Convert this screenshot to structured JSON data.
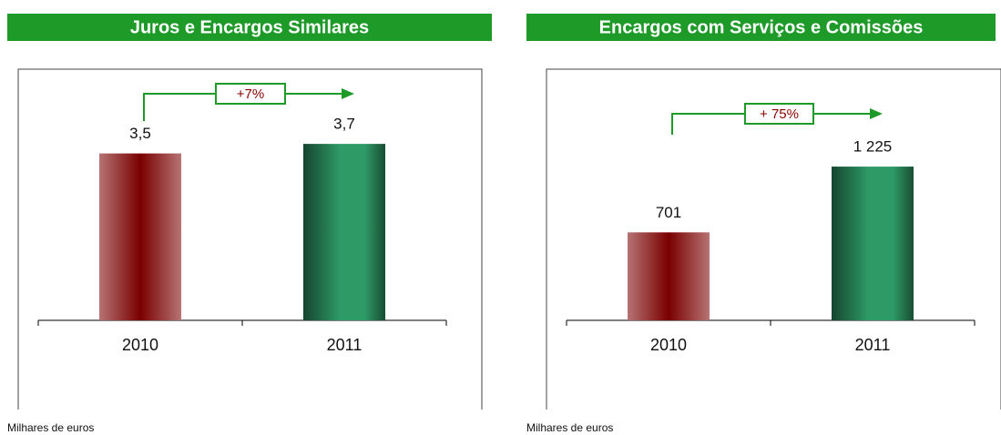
{
  "chart_data": [
    {
      "type": "bar",
      "title": "Juros e Encargos Similares",
      "categories": [
        "2010",
        "2011"
      ],
      "values": [
        3.5,
        3.7
      ],
      "value_labels": [
        "3,5",
        "3,7"
      ],
      "colors": [
        "#7a0000",
        "#2e9a66"
      ],
      "ylim": [
        0,
        5
      ],
      "annotation": "+7%",
      "note": "Milhares de euros"
    },
    {
      "type": "bar",
      "title": "Encargos com Serviços e Comissões",
      "categories": [
        "2010",
        "2011"
      ],
      "values": [
        701,
        1225
      ],
      "value_labels": [
        "701",
        "1 225"
      ],
      "colors": [
        "#7a0000",
        "#2e9a66"
      ],
      "ylim": [
        0,
        1900
      ],
      "annotation": "+ 75%",
      "note": "Milhares de euros"
    }
  ]
}
